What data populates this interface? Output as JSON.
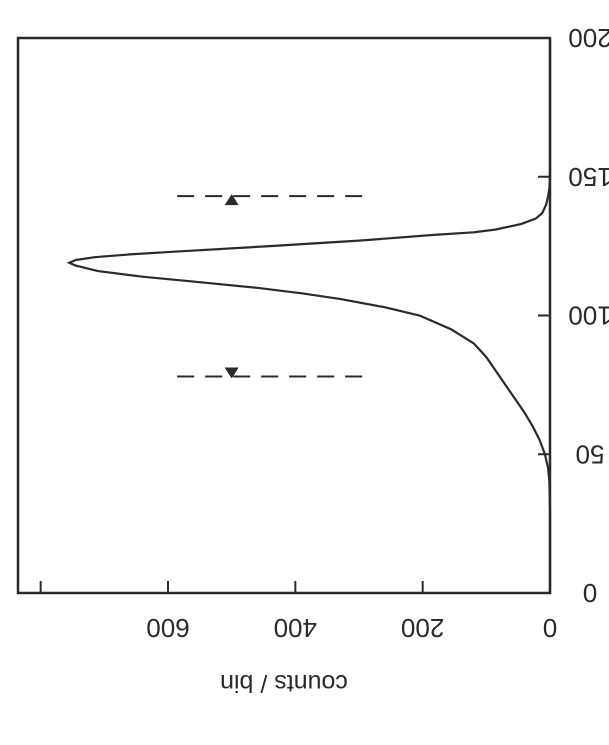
{
  "chart_data": {
    "type": "line",
    "title": "",
    "ylabel": "counts / bin",
    "xlabel": "",
    "xlim": [
      0,
      200
    ],
    "ylim": [
      0,
      800
    ],
    "x_ticks": [
      0,
      50,
      100,
      150,
      200
    ],
    "y_ticks": [
      0,
      200,
      400,
      600
    ],
    "y_minor_ticks": [
      800
    ],
    "series": [
      {
        "x": [
          0,
          10,
          20,
          30,
          40,
          45,
          50,
          55,
          60,
          65,
          70,
          75,
          80,
          85,
          88,
          90,
          95,
          100,
          103,
          106,
          108,
          110,
          112,
          114,
          116,
          118,
          119,
          120,
          121,
          122,
          123,
          125,
          127,
          129,
          130,
          131,
          133,
          135,
          137,
          140,
          143,
          146,
          150,
          160,
          170,
          180,
          190,
          200
        ],
        "y": [
          0,
          0,
          0,
          0,
          1,
          3,
          8,
          16,
          27,
          40,
          55,
          70,
          85,
          100,
          112,
          120,
          155,
          205,
          260,
          330,
          390,
          460,
          550,
          640,
          710,
          745,
          755,
          745,
          715,
          660,
          590,
          440,
          300,
          185,
          120,
          85,
          45,
          22,
          12,
          6,
          3,
          1,
          0,
          0,
          0,
          0,
          0,
          0
        ]
      }
    ],
    "cut_lines": [
      {
        "x": 78,
        "y_range": [
          295,
          600
        ]
      },
      {
        "x": 143,
        "y_range": [
          295,
          600
        ]
      }
    ],
    "arrow_markers": [
      {
        "x": 78,
        "y": 500,
        "direction": "right"
      },
      {
        "x": 143,
        "y": 500,
        "direction": "left"
      }
    ],
    "colors": {
      "line": "#2a2a2a",
      "frame": "#2a2a2a",
      "background": "#ffffff"
    }
  }
}
